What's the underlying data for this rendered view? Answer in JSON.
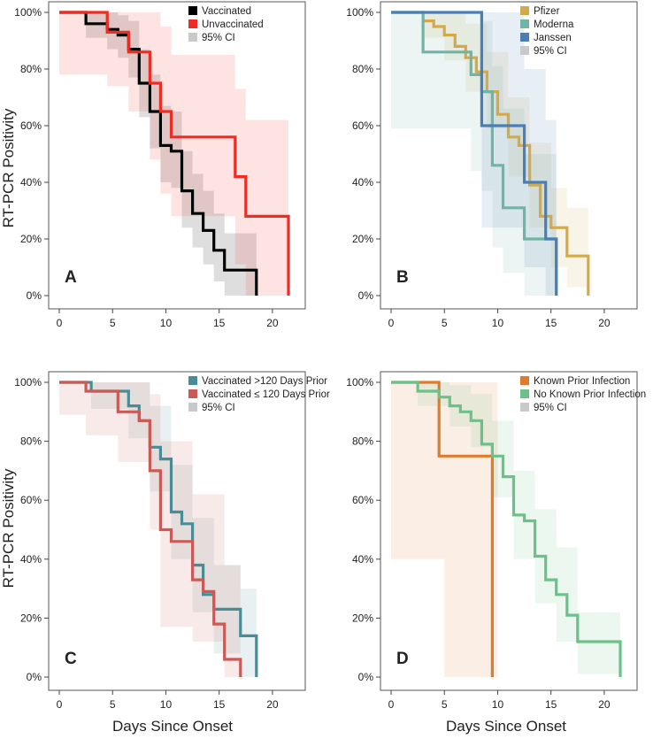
{
  "figure": {
    "ylabel": "RT-PCR Positivity",
    "xlabel": "Days Since Onset"
  },
  "chart_data": [
    {
      "panel": "A",
      "type": "line",
      "step": true,
      "xlim": [
        0,
        22
      ],
      "ylim": [
        0,
        100
      ],
      "xticks": [
        "0",
        "5",
        "10",
        "15",
        "20"
      ],
      "yticks": [
        "0%",
        "20%",
        "40%",
        "60%",
        "80%",
        "100%"
      ],
      "legend": {
        "position": "top-right",
        "entries": [
          "Vaccinated",
          "Unvaccinated",
          "95% CI"
        ]
      },
      "series": [
        {
          "name": "Vaccinated",
          "color": "#000000",
          "x": [
            0,
            2.5,
            4.5,
            5.5,
            6.5,
            7.5,
            8.5,
            9.5,
            10.5,
            11.5,
            12.5,
            13.5,
            14.5,
            15.5,
            16.5,
            18.5
          ],
          "y": [
            100,
            96,
            94,
            92,
            87,
            75,
            65,
            53,
            51,
            37,
            29,
            23,
            16,
            9,
            9,
            0
          ],
          "ci_x": [
            0,
            2.5,
            4.5,
            5.5,
            6.5,
            7.5,
            8.5,
            9.5,
            10.5,
            11.5,
            12.5,
            13.5,
            14.5,
            15.5,
            16.5,
            18.5
          ],
          "ci_low": [
            100,
            91,
            87,
            84,
            77,
            63,
            52,
            40,
            38,
            24,
            17,
            11,
            5,
            0,
            0,
            0
          ],
          "ci_high": [
            100,
            100,
            100,
            99,
            97,
            87,
            78,
            67,
            65,
            51,
            43,
            37,
            29,
            22,
            22,
            0
          ]
        },
        {
          "name": "Unvaccinated",
          "color": "#ee2c23",
          "x": [
            0,
            4.5,
            6.5,
            8.5,
            9.5,
            10.5,
            16.5,
            17.5,
            21.5
          ],
          "y": [
            100,
            93,
            86,
            75,
            65,
            56,
            42,
            28,
            0
          ],
          "ci_x": [
            0,
            2.5,
            4.5,
            6.5,
            8.5,
            9.5,
            10.5,
            12.5,
            16.5,
            17.5,
            21.5
          ],
          "ci_low": [
            78,
            78,
            74,
            65,
            48,
            36,
            28,
            28,
            11,
            0,
            0
          ],
          "ci_high": [
            100,
            100,
            100,
            100,
            100,
            95,
            85,
            85,
            73,
            62,
            62
          ]
        }
      ],
      "annotation": "A"
    },
    {
      "panel": "B",
      "type": "line",
      "step": true,
      "xlim": [
        0,
        22
      ],
      "ylim": [
        0,
        100
      ],
      "xticks": [
        "0",
        "5",
        "10",
        "15",
        "20"
      ],
      "yticks": [
        "0%",
        "20%",
        "40%",
        "60%",
        "80%",
        "100%"
      ],
      "legend": {
        "position": "top-right",
        "entries": [
          "Pfizer",
          "Moderna",
          "Janssen",
          "95% CI"
        ]
      },
      "series": [
        {
          "name": "Pfizer",
          "color": "#d4a94a",
          "x": [
            0,
            3,
            4,
            5,
            6,
            7,
            8,
            9,
            10,
            11,
            12,
            13,
            14,
            15,
            16.5,
            18.5
          ],
          "y": [
            100,
            97,
            95,
            92,
            88,
            84,
            79,
            72,
            64,
            56,
            53,
            39,
            28,
            24,
            14,
            0
          ],
          "ci_x": [
            0,
            3,
            5,
            7,
            9,
            11,
            13,
            15,
            16.5,
            18.5
          ],
          "ci_low": [
            100,
            91,
            83,
            72,
            59,
            42,
            24,
            10,
            3,
            0
          ],
          "ci_high": [
            100,
            100,
            100,
            96,
            86,
            70,
            54,
            38,
            31,
            31
          ]
        },
        {
          "name": "Moderna",
          "color": "#6fb5a6",
          "x": [
            0,
            3,
            7.5,
            8.5,
            9.5,
            10.5,
            12.5,
            13.5,
            15.5
          ],
          "y": [
            100,
            86,
            78,
            72,
            46,
            31,
            20,
            20,
            0
          ],
          "ci_x": [
            0,
            3,
            7.5,
            8.5,
            9.5,
            10.5,
            12.5,
            15.5
          ],
          "ci_low": [
            59,
            59,
            44,
            37,
            17,
            8,
            0,
            0
          ],
          "ci_high": [
            100,
            100,
            100,
            97,
            81,
            66,
            50,
            50
          ]
        },
        {
          "name": "Janssen",
          "color": "#4a7fb5",
          "x": [
            0,
            4.5,
            8.5,
            12.5,
            14.5,
            15.5
          ],
          "y": [
            100,
            100,
            60,
            40,
            20,
            0
          ],
          "ci_x": [
            0,
            4.5,
            8.5,
            12.5,
            14.5,
            15.5
          ],
          "ci_low": [
            100,
            100,
            24,
            10,
            0,
            0
          ],
          "ci_high": [
            100,
            100,
            100,
            80,
            62,
            0
          ]
        }
      ],
      "annotation": "B"
    },
    {
      "panel": "C",
      "type": "line",
      "step": true,
      "xlim": [
        0,
        22
      ],
      "ylim": [
        0,
        100
      ],
      "xticks": [
        "0",
        "5",
        "10",
        "15",
        "20"
      ],
      "yticks": [
        "0%",
        "20%",
        "40%",
        "60%",
        "80%",
        "100%"
      ],
      "legend": {
        "position": "top-right",
        "entries": [
          "Vaccinated >120 Days Prior",
          "Vaccinated ≤ 120 Days Prior",
          "95% CI"
        ]
      },
      "series": [
        {
          "name": "Vaccinated >120 Days Prior",
          "color": "#4a8c96",
          "x": [
            0,
            3,
            6.5,
            7.5,
            8.5,
            9.5,
            10.5,
            11.5,
            12.5,
            13.5,
            14.5,
            16,
            17,
            18.5
          ],
          "y": [
            100,
            97,
            92,
            87,
            78,
            74,
            56,
            52,
            38,
            28,
            23,
            23,
            14,
            0
          ],
          "ci_x": [
            0,
            3,
            6.5,
            8.5,
            10.5,
            12.5,
            14.5,
            17,
            18.5
          ],
          "ci_low": [
            100,
            91,
            81,
            63,
            40,
            22,
            8,
            0,
            0
          ],
          "ci_high": [
            100,
            100,
            100,
            92,
            72,
            54,
            38,
            30,
            0
          ]
        },
        {
          "name": "Vaccinated ≤ 120 Days Prior",
          "color": "#c95a55",
          "x": [
            0,
            2.5,
            5.5,
            7.5,
            8.5,
            9.5,
            10.5,
            12.5,
            13.5,
            14.5,
            15.5,
            17
          ],
          "y": [
            100,
            97,
            90,
            87,
            70,
            50,
            46,
            33,
            29,
            18,
            6,
            0
          ],
          "ci_x": [
            0,
            2.5,
            5.5,
            8.5,
            9.5,
            12.5,
            15.5,
            17
          ],
          "ci_low": [
            89,
            82,
            73,
            50,
            17,
            12,
            0,
            0
          ],
          "ci_high": [
            100,
            100,
            100,
            96,
            80,
            62,
            38,
            0
          ]
        }
      ],
      "annotation": "C"
    },
    {
      "panel": "D",
      "type": "line",
      "step": true,
      "xlim": [
        0,
        22
      ],
      "ylim": [
        0,
        100
      ],
      "xticks": [
        "0",
        "5",
        "10",
        "15",
        "20"
      ],
      "yticks": [
        "0%",
        "20%",
        "40%",
        "60%",
        "80%",
        "100%"
      ],
      "legend": {
        "position": "top-right",
        "entries": [
          "Known Prior Infection",
          "No Known Prior Infection",
          "95% CI"
        ]
      },
      "series": [
        {
          "name": "Known Prior Infection",
          "color": "#e07b2c",
          "x": [
            0,
            2.5,
            4.5,
            9.5
          ],
          "y": [
            100,
            100,
            75,
            0
          ],
          "ci_x": [
            0,
            2.5,
            4.5,
            5,
            10
          ],
          "ci_low": [
            40,
            40,
            40,
            0,
            0
          ],
          "ci_high": [
            100,
            100,
            100,
            100,
            100
          ]
        },
        {
          "name": "No Known Prior Infection",
          "color": "#6cc18b",
          "x": [
            0,
            2.5,
            4.5,
            5.5,
            6.5,
            7.5,
            8.5,
            9.5,
            10.5,
            11.5,
            12.5,
            13.5,
            14.5,
            15.5,
            16.5,
            17.5,
            21.5
          ],
          "y": [
            100,
            97,
            95,
            92,
            90,
            87,
            79,
            75,
            68,
            55,
            53,
            41,
            33,
            28,
            21,
            12,
            0
          ],
          "ci_x": [
            0,
            2.5,
            5.5,
            7.5,
            9.5,
            11.5,
            13.5,
            15.5,
            17.5,
            21.5
          ],
          "ci_low": [
            100,
            92,
            85,
            78,
            61,
            40,
            25,
            12,
            1,
            1
          ],
          "ci_high": [
            100,
            100,
            99,
            96,
            87,
            70,
            57,
            44,
            22,
            22
          ]
        }
      ],
      "annotation": "D"
    }
  ]
}
